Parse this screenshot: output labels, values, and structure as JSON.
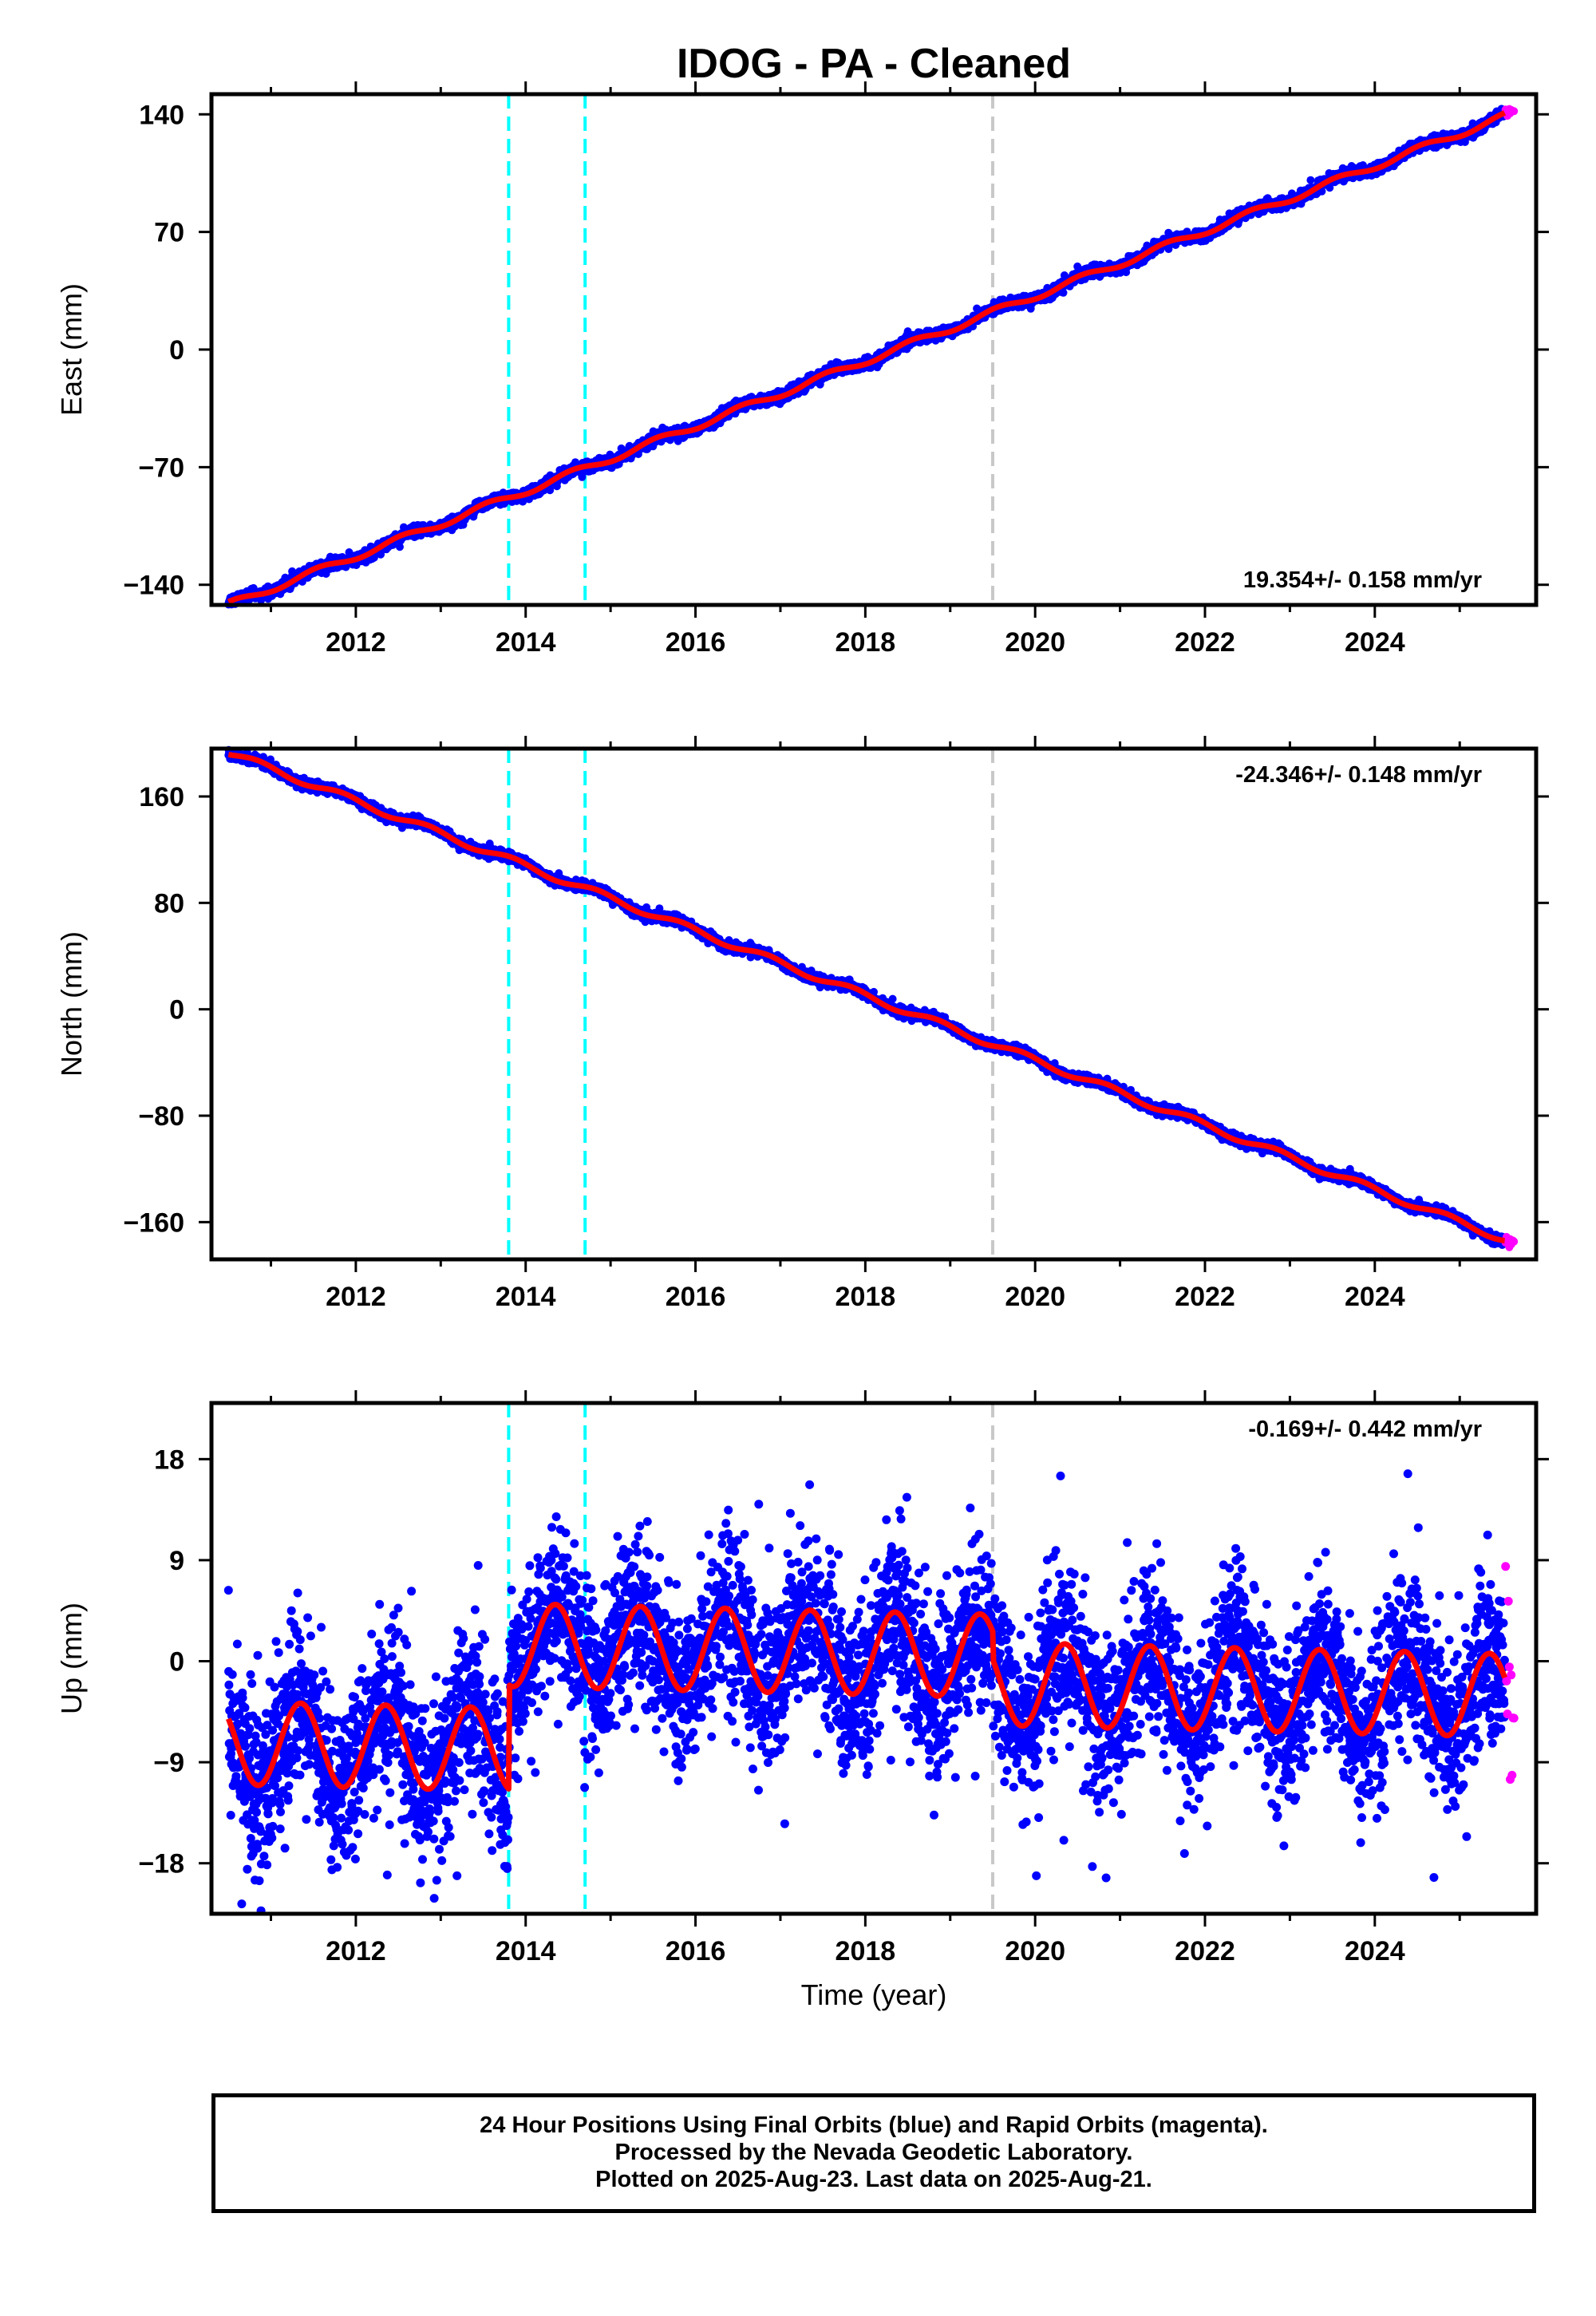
{
  "title": "IDOG  - PA - Cleaned",
  "x_axis_label": "Time (year)",
  "footer": [
    "24 Hour Positions Using Final Orbits (blue) and Rapid Orbits (magenta).",
    "Processed by the Nevada Geodetic Laboratory.",
    "Plotted on 2025-Aug-23. Last data on 2025-Aug-21."
  ],
  "colors": {
    "final": "#0000ff",
    "rapid": "#ff00ff",
    "model": "#ff0000",
    "equipment_change": "#00ffff",
    "other_event": "#c8c8c8"
  },
  "chart_data": [
    {
      "type": "scatter",
      "panel": "east",
      "ylabel": "East (mm)",
      "rate_label": "19.354+/- 0.158 mm/yr",
      "rate_position": "bottom-right",
      "xlim": [
        2010.3,
        2025.9
      ],
      "ylim": [
        -152,
        152
      ],
      "xticks": [
        2012,
        2014,
        2016,
        2018,
        2020,
        2022,
        2024
      ],
      "yticks": [
        -140,
        -70,
        0,
        70,
        140
      ],
      "ytick_labels": [
        "−140",
        "−70",
        "0",
        "70",
        "140"
      ],
      "vlines_cyan": [
        2013.8,
        2014.7
      ],
      "vlines_gray": [
        2019.5
      ],
      "trend": {
        "t0": 2010.5,
        "y0": -152,
        "rate": 19.354,
        "annual_amp": 2.0,
        "annual_phase": 0.3,
        "offsets": []
      },
      "noise": 1.6,
      "series": [
        {
          "name": "Final Orbits",
          "x_range": [
            2010.5,
            2025.53
          ]
        },
        {
          "name": "Rapid Orbits",
          "x_range": [
            2025.54,
            2025.64
          ]
        }
      ]
    },
    {
      "type": "scatter",
      "panel": "north",
      "ylabel": "North (mm)",
      "rate_label": "-24.346+/- 0.148 mm/yr",
      "rate_position": "top-right",
      "xlim": [
        2010.3,
        2025.9
      ],
      "ylim": [
        -188,
        196
      ],
      "xticks": [
        2012,
        2014,
        2016,
        2018,
        2020,
        2022,
        2024
      ],
      "yticks": [
        -160,
        -80,
        0,
        80,
        160
      ],
      "ytick_labels": [
        "−160",
        "−80",
        "0",
        "80",
        "160"
      ],
      "vlines_cyan": [
        2013.8,
        2014.7
      ],
      "vlines_gray": [
        2019.5
      ],
      "trend": {
        "t0": 2010.5,
        "y0": 193,
        "rate": -24.346,
        "annual_amp": 2.5,
        "annual_phase": 0.6,
        "offsets": []
      },
      "noise": 1.8,
      "series": [
        {
          "name": "Final Orbits",
          "x_range": [
            2010.5,
            2025.53
          ]
        },
        {
          "name": "Rapid Orbits",
          "x_range": [
            2025.54,
            2025.64
          ]
        }
      ]
    },
    {
      "type": "scatter",
      "panel": "up",
      "ylabel": "Up (mm)",
      "rate_label": "-0.169+/- 0.442 mm/yr",
      "rate_position": "top-right",
      "xlim": [
        2010.3,
        2025.9
      ],
      "ylim": [
        -22.5,
        23
      ],
      "xticks": [
        2012,
        2014,
        2016,
        2018,
        2020,
        2022,
        2024
      ],
      "yticks": [
        -18,
        -9,
        0,
        9,
        18
      ],
      "ytick_labels": [
        "−18",
        "−9",
        "0",
        "9",
        "18"
      ],
      "vlines_cyan": [
        2013.8,
        2014.7
      ],
      "vlines_gray": [
        2019.5
      ],
      "trend": {
        "t0": 2010.5,
        "y0": -7.3,
        "rate": -0.169,
        "annual_amp": 3.7,
        "annual_phase": 0.1,
        "offsets": [
          {
            "t": 2013.8,
            "dy": 9.3
          },
          {
            "t": 2019.5,
            "dy": -2.5
          }
        ]
      },
      "noise": 3.6,
      "series": [
        {
          "name": "Final Orbits",
          "x_range": [
            2010.5,
            2025.53
          ]
        },
        {
          "name": "Rapid Orbits",
          "x_range": [
            2025.54,
            2025.64
          ]
        }
      ]
    }
  ]
}
